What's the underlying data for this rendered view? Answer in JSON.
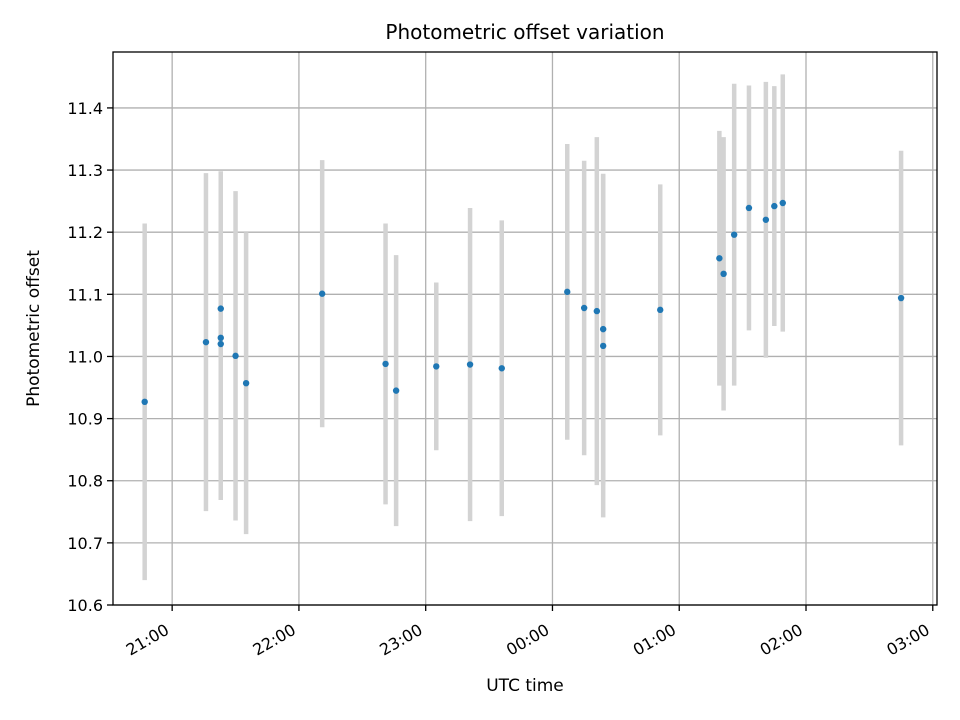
{
  "chart_data": {
    "type": "scatter",
    "title": "Photometric offset variation",
    "xlabel": "UTC time",
    "ylabel": "Photometric offset",
    "x_axis_type": "time",
    "x_range": [
      "20:32",
      "03:02"
    ],
    "x_ticks": [
      "21:00",
      "22:00",
      "23:00",
      "00:00",
      "01:00",
      "02:00",
      "03:00"
    ],
    "ylim": [
      10.6,
      11.49
    ],
    "y_ticks": [
      "10.6",
      "10.7",
      "10.8",
      "10.9",
      "11.0",
      "11.1",
      "11.2",
      "11.3",
      "11.4"
    ],
    "grid": true,
    "colors": {
      "point": "#1f77b4",
      "errorbar": "#d3d3d3",
      "grid": "#b0b0b0"
    },
    "points": [
      {
        "x": "20:47",
        "y": 10.927,
        "yerr": 0.287
      },
      {
        "x": "21:16",
        "y": 11.023,
        "yerr": 0.272
      },
      {
        "x": "21:23",
        "y": 11.03,
        "yerr": 0.242
      },
      {
        "x": "21:23",
        "y": 11.077,
        "yerr": 0.221
      },
      {
        "x": "21:23",
        "y": 11.02,
        "yerr": 0.251
      },
      {
        "x": "21:30",
        "y": 11.001,
        "yerr": 0.265
      },
      {
        "x": "21:35",
        "y": 10.957,
        "yerr": 0.243
      },
      {
        "x": "22:11",
        "y": 11.101,
        "yerr": 0.215
      },
      {
        "x": "22:41",
        "y": 10.988,
        "yerr": 0.226
      },
      {
        "x": "22:46",
        "y": 10.945,
        "yerr": 0.218
      },
      {
        "x": "23:05",
        "y": 10.984,
        "yerr": 0.135
      },
      {
        "x": "23:21",
        "y": 10.987,
        "yerr": 0.252
      },
      {
        "x": "23:36",
        "y": 10.981,
        "yerr": 0.238
      },
      {
        "x": "00:07",
        "y": 11.104,
        "yerr": 0.238
      },
      {
        "x": "00:15",
        "y": 11.078,
        "yerr": 0.237
      },
      {
        "x": "00:21",
        "y": 11.073,
        "yerr": 0.28
      },
      {
        "x": "00:24",
        "y": 11.044,
        "yerr": 0.25
      },
      {
        "x": "00:24",
        "y": 11.017,
        "yerr": 0.276
      },
      {
        "x": "00:51",
        "y": 11.075,
        "yerr": 0.202
      },
      {
        "x": "01:19",
        "y": 11.158,
        "yerr": 0.205
      },
      {
        "x": "01:21",
        "y": 11.133,
        "yerr": 0.22
      },
      {
        "x": "01:26",
        "y": 11.196,
        "yerr": 0.243
      },
      {
        "x": "01:33",
        "y": 11.239,
        "yerr": 0.197
      },
      {
        "x": "01:41",
        "y": 11.22,
        "yerr": 0.222
      },
      {
        "x": "01:45",
        "y": 11.242,
        "yerr": 0.193
      },
      {
        "x": "01:49",
        "y": 11.247,
        "yerr": 0.207
      },
      {
        "x": "02:45",
        "y": 11.094,
        "yerr": 0.237
      }
    ]
  }
}
